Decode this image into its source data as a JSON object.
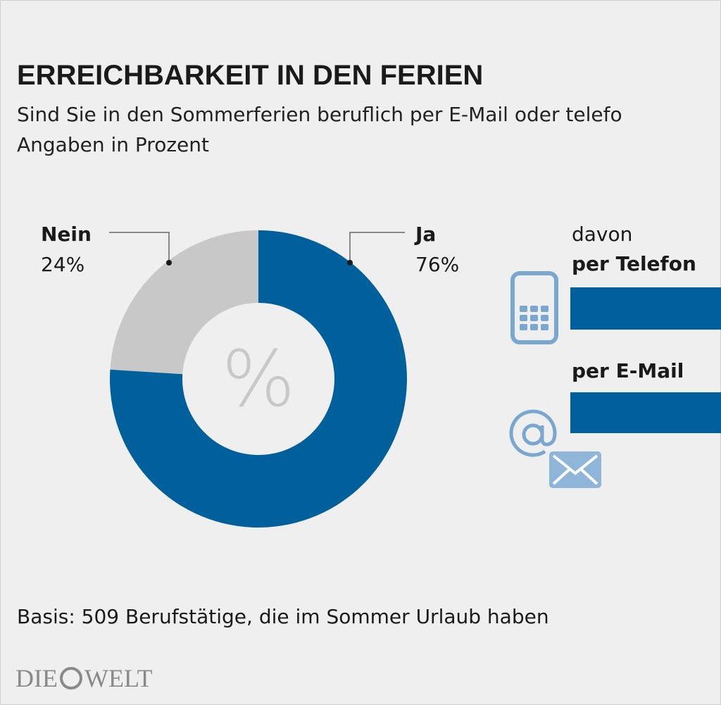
{
  "chart_data": {
    "type": "pie",
    "donut": true,
    "title": "ERREICHBARKEIT IN DEN FERIEN",
    "subtitle": "Sind Sie in den Sommerferien beruflich per E-Mail oder telefo",
    "unit_note": "Angaben in Prozent",
    "categories": [
      "Nein",
      "Ja"
    ],
    "values": [
      24,
      76
    ],
    "value_labels": [
      "24%",
      "76%"
    ],
    "colors": [
      "#c8c8c8",
      "#00609c"
    ],
    "center_label": "%",
    "breakdown_intro": "davon",
    "breakdown_labels": [
      "per Telefon",
      "per E-Mail"
    ],
    "source": "Basis: 509 Berufstätige, die im Sommer Urlaub haben",
    "logo": [
      "DIE",
      "WELT"
    ]
  }
}
